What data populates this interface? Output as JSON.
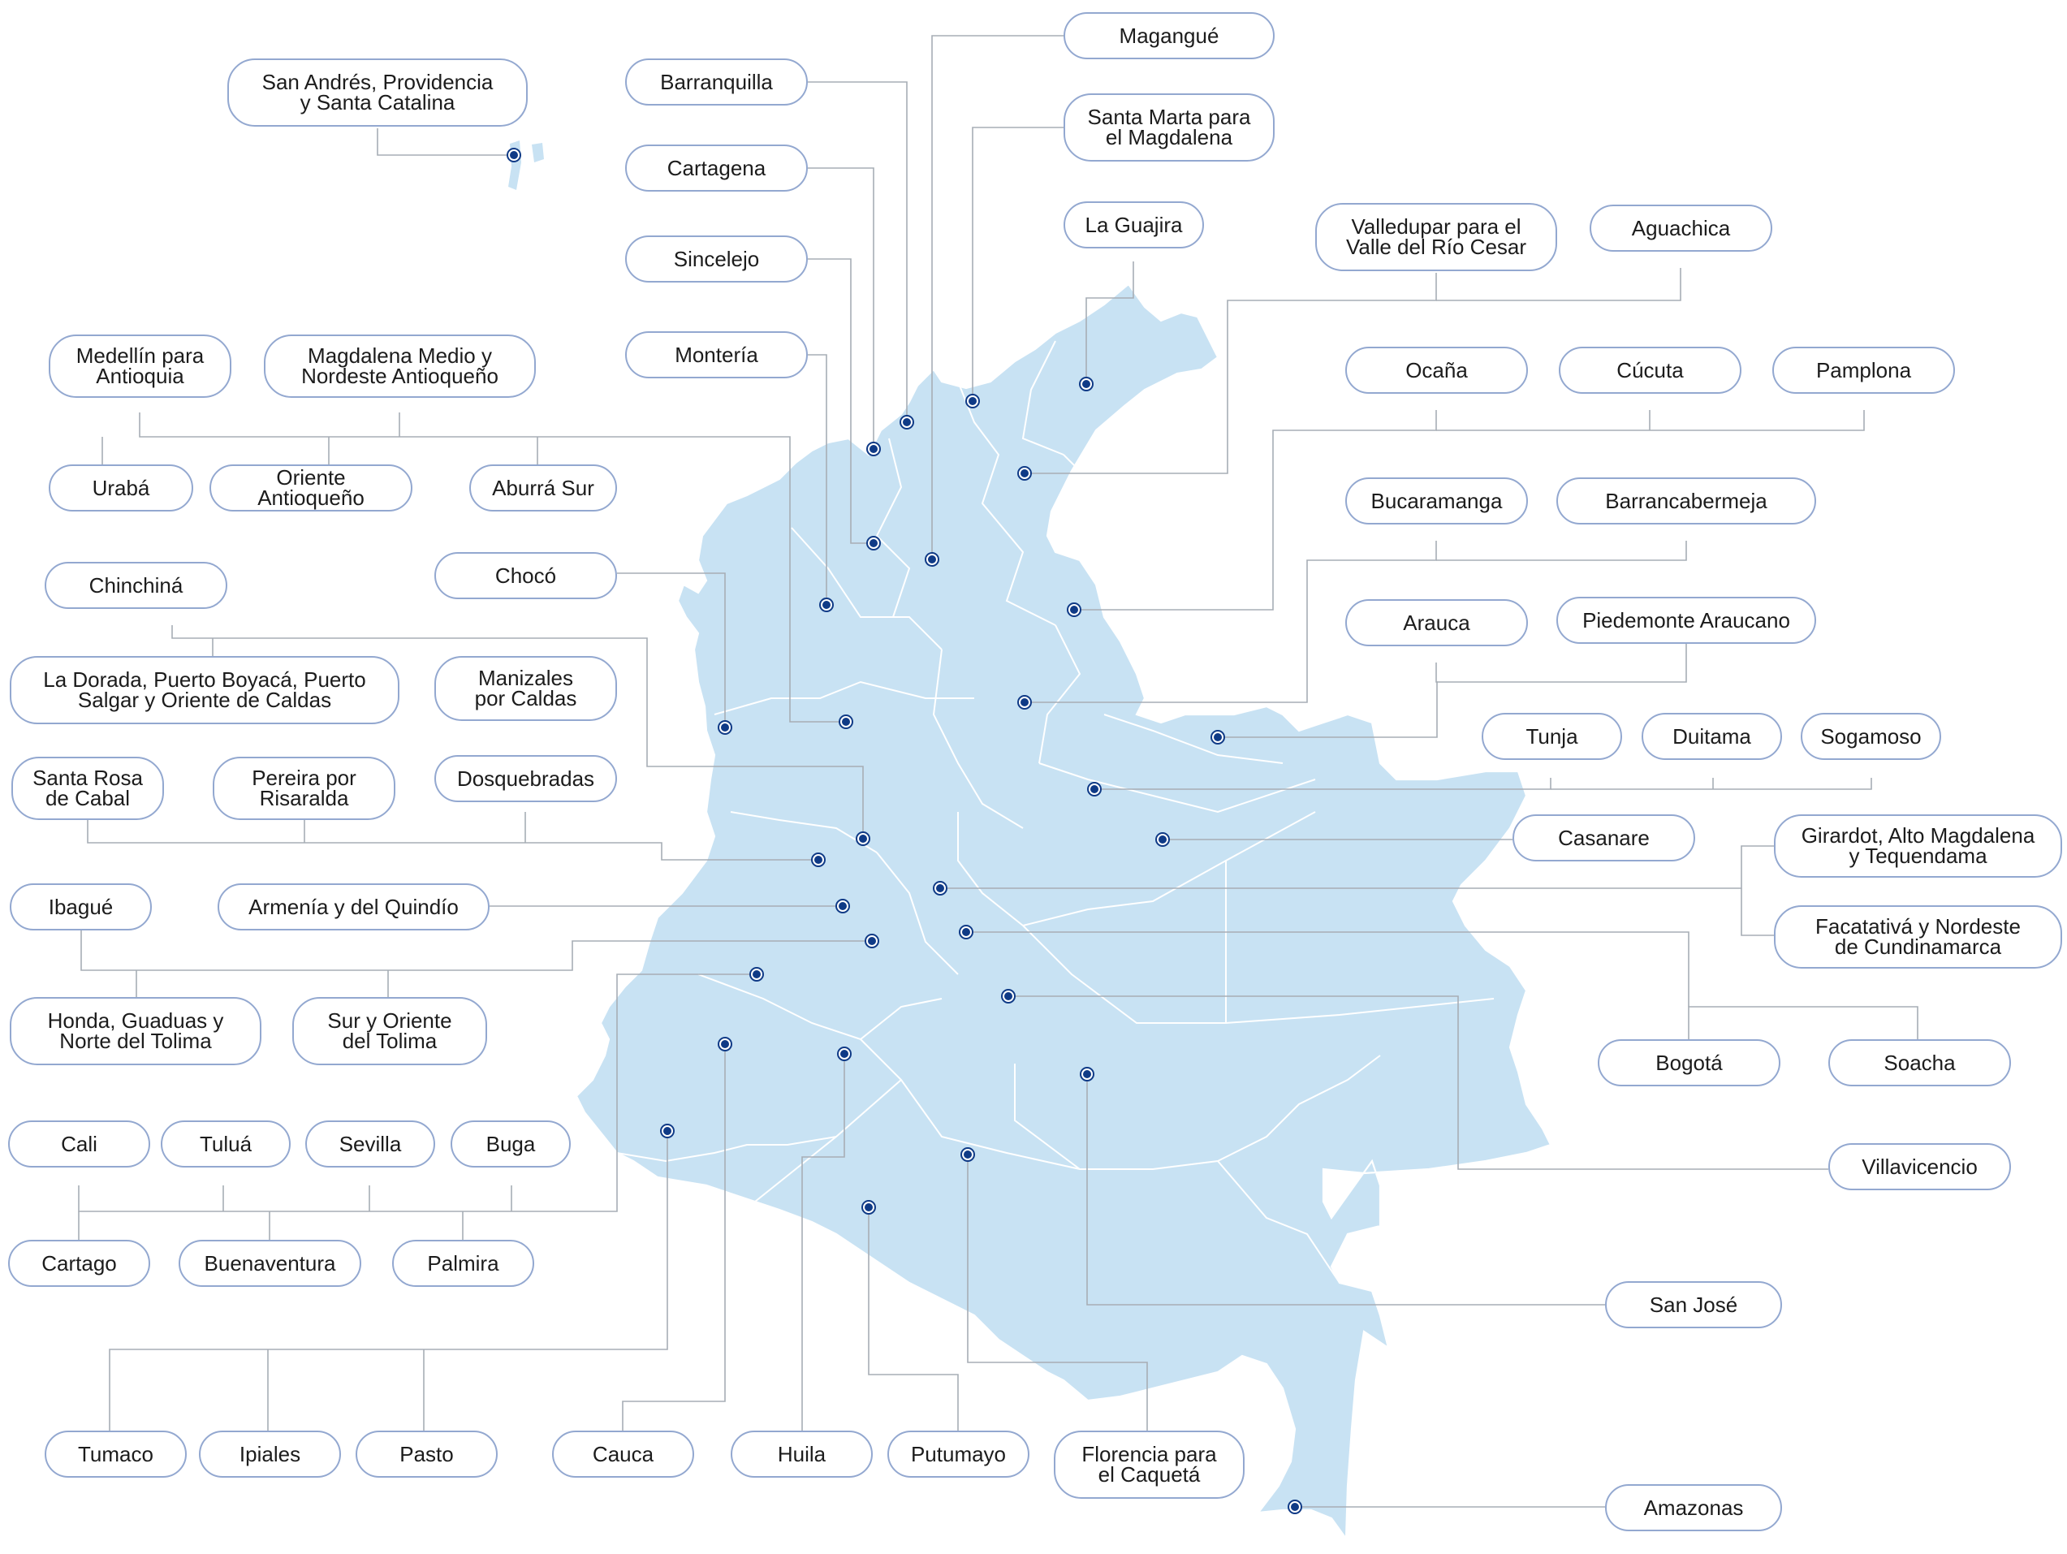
{
  "map": {
    "fill_color": "#c8e2f3",
    "marker_color": "#0f3a86",
    "label_border_color": "#93a8d0",
    "connector_color": "#a7adb5",
    "offices": [
      {
        "id": "san-andres",
        "label": "San Andrés, Providencia\ny Santa Catalina"
      },
      {
        "id": "barranquilla",
        "label": "Barranquilla"
      },
      {
        "id": "magangue",
        "label": "Magangué"
      },
      {
        "id": "santa-marta",
        "label": "Santa Marta para\nel Magdalena"
      },
      {
        "id": "cartagena",
        "label": "Cartagena"
      },
      {
        "id": "la-guajira",
        "label": "La Guajira"
      },
      {
        "id": "valledupar",
        "label": "Valledupar para el\nValle del Río Cesar"
      },
      {
        "id": "aguachica",
        "label": "Aguachica"
      },
      {
        "id": "sincelejo",
        "label": "Sincelejo"
      },
      {
        "id": "monteria",
        "label": "Montería"
      },
      {
        "id": "medellin",
        "label": "Medellín para\nAntioquia"
      },
      {
        "id": "magdalena-medio",
        "label": "Magdalena Medio y\nNordeste Antioqueño"
      },
      {
        "id": "ocana",
        "label": "Ocaña"
      },
      {
        "id": "cucuta",
        "label": "Cúcuta"
      },
      {
        "id": "pamplona",
        "label": "Pamplona"
      },
      {
        "id": "uraba",
        "label": "Urabá"
      },
      {
        "id": "oriente-antioqueno",
        "label": "Oriente Antioqueño"
      },
      {
        "id": "aburra-sur",
        "label": "Aburrá Sur"
      },
      {
        "id": "bucaramanga",
        "label": "Bucaramanga"
      },
      {
        "id": "barrancabermeja",
        "label": "Barrancabermeja"
      },
      {
        "id": "choco",
        "label": "Chocó"
      },
      {
        "id": "chinchina",
        "label": "Chinchiná"
      },
      {
        "id": "arauca",
        "label": "Arauca"
      },
      {
        "id": "piedemonte-araucano",
        "label": "Piedemonte Araucano"
      },
      {
        "id": "la-dorada",
        "label": "La Dorada, Puerto Boyacá, Puerto\nSalgar y Oriente de Caldas"
      },
      {
        "id": "manizales",
        "label": "Manizales\npor Caldas"
      },
      {
        "id": "tunja",
        "label": "Tunja"
      },
      {
        "id": "duitama",
        "label": "Duitama"
      },
      {
        "id": "sogamoso",
        "label": "Sogamoso"
      },
      {
        "id": "santa-rosa",
        "label": "Santa Rosa\nde Cabal"
      },
      {
        "id": "pereira",
        "label": "Pereira por\nRisaralda"
      },
      {
        "id": "dosquebradas",
        "label": "Dosquebradas"
      },
      {
        "id": "casanare",
        "label": "Casanare"
      },
      {
        "id": "girardot",
        "label": "Girardot, Alto Magdalena\ny Tequendama"
      },
      {
        "id": "ibague",
        "label": "Ibagué"
      },
      {
        "id": "armenia",
        "label": "Armenía y del Quindío"
      },
      {
        "id": "facatativa",
        "label": "Facatativá y Nordeste\nde Cundinamarca"
      },
      {
        "id": "honda",
        "label": "Honda, Guaduas y\nNorte del Tolima"
      },
      {
        "id": "sur-oriente-tolima",
        "label": "Sur y Oriente\ndel Tolima"
      },
      {
        "id": "bogota",
        "label": "Bogotá"
      },
      {
        "id": "soacha",
        "label": "Soacha"
      },
      {
        "id": "cali",
        "label": "Cali"
      },
      {
        "id": "tulua",
        "label": "Tuluá"
      },
      {
        "id": "sevilla",
        "label": "Sevilla"
      },
      {
        "id": "buga",
        "label": "Buga"
      },
      {
        "id": "villavicencio",
        "label": "Villavicencio"
      },
      {
        "id": "cartago",
        "label": "Cartago"
      },
      {
        "id": "buenaventura",
        "label": "Buenaventura"
      },
      {
        "id": "palmira",
        "label": "Palmira"
      },
      {
        "id": "san-jose",
        "label": "San José"
      },
      {
        "id": "tumaco",
        "label": "Tumaco"
      },
      {
        "id": "ipiales",
        "label": "Ipiales"
      },
      {
        "id": "pasto",
        "label": "Pasto"
      },
      {
        "id": "cauca",
        "label": "Cauca"
      },
      {
        "id": "huila",
        "label": "Huila"
      },
      {
        "id": "putumayo",
        "label": "Putumayo"
      },
      {
        "id": "florencia",
        "label": "Florencia para\nel Caquetá"
      },
      {
        "id": "amazonas",
        "label": "Amazonas"
      }
    ]
  }
}
